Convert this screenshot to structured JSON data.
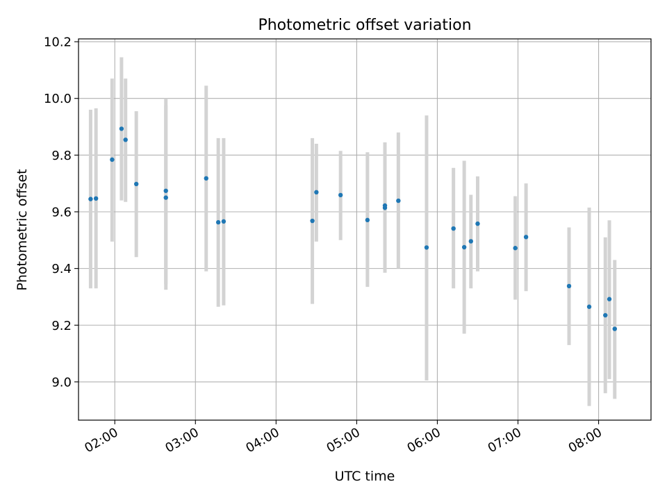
{
  "chart_data": {
    "type": "scatter",
    "title": "Photometric offset variation",
    "xlabel": "UTC time",
    "ylabel": "Photometric offset",
    "x_ticks": [
      "02:00",
      "03:00",
      "04:00",
      "05:00",
      "06:00",
      "07:00",
      "08:00"
    ],
    "y_ticks": [
      "9.0",
      "9.2",
      "9.4",
      "9.6",
      "9.8",
      "10.0",
      "10.2"
    ],
    "xlim": [
      "01:33",
      "08:39"
    ],
    "ylim": [
      8.865,
      10.21
    ],
    "grid": true,
    "legend": "none",
    "point_color": "#1f77b4",
    "errorbar_color": "#d3d3d3",
    "series": [
      {
        "points": [
          {
            "time": "01:42",
            "value": 9.645,
            "low": 9.33,
            "high": 9.96
          },
          {
            "time": "01:46",
            "value": 9.647,
            "low": 9.33,
            "high": 9.965
          },
          {
            "time": "01:58",
            "value": 9.784,
            "low": 9.495,
            "high": 10.07
          },
          {
            "time": "02:05",
            "value": 9.893,
            "low": 9.64,
            "high": 10.145
          },
          {
            "time": "02:08",
            "value": 9.854,
            "low": 9.635,
            "high": 10.07
          },
          {
            "time": "02:16",
            "value": 9.698,
            "low": 9.44,
            "high": 9.955
          },
          {
            "time": "02:38",
            "value": 9.674,
            "low": 9.345,
            "high": 10.0
          },
          {
            "time": "02:38",
            "value": 9.65,
            "low": 9.325,
            "high": 9.975
          },
          {
            "time": "03:08",
            "value": 9.718,
            "low": 9.39,
            "high": 10.045
          },
          {
            "time": "03:17",
            "value": 9.563,
            "low": 9.265,
            "high": 9.86
          },
          {
            "time": "03:21",
            "value": 9.566,
            "low": 9.27,
            "high": 9.86
          },
          {
            "time": "04:27",
            "value": 9.568,
            "low": 9.275,
            "high": 9.86
          },
          {
            "time": "04:30",
            "value": 9.669,
            "low": 9.495,
            "high": 9.84
          },
          {
            "time": "04:48",
            "value": 9.659,
            "low": 9.5,
            "high": 9.815
          },
          {
            "time": "05:08",
            "value": 9.571,
            "low": 9.335,
            "high": 9.81
          },
          {
            "time": "05:21",
            "value": 9.614,
            "low": 9.385,
            "high": 9.845
          },
          {
            "time": "05:21",
            "value": 9.622,
            "low": 9.4,
            "high": 9.845
          },
          {
            "time": "05:31",
            "value": 9.639,
            "low": 9.4,
            "high": 9.88
          },
          {
            "time": "05:52",
            "value": 9.474,
            "low": 9.005,
            "high": 9.94
          },
          {
            "time": "06:12",
            "value": 9.541,
            "low": 9.33,
            "high": 9.755
          },
          {
            "time": "06:20",
            "value": 9.475,
            "low": 9.17,
            "high": 9.78
          },
          {
            "time": "06:25",
            "value": 9.496,
            "low": 9.33,
            "high": 9.66
          },
          {
            "time": "06:30",
            "value": 9.558,
            "low": 9.39,
            "high": 9.725
          },
          {
            "time": "06:58",
            "value": 9.472,
            "low": 9.29,
            "high": 9.655
          },
          {
            "time": "07:06",
            "value": 9.511,
            "low": 9.32,
            "high": 9.7
          },
          {
            "time": "07:38",
            "value": 9.338,
            "low": 9.13,
            "high": 9.545
          },
          {
            "time": "07:53",
            "value": 9.265,
            "low": 8.915,
            "high": 9.615
          },
          {
            "time": "08:05",
            "value": 9.235,
            "low": 8.96,
            "high": 9.51
          },
          {
            "time": "08:08",
            "value": 9.292,
            "low": 9.01,
            "high": 9.57
          },
          {
            "time": "08:12",
            "value": 9.187,
            "low": 8.94,
            "high": 9.43
          }
        ]
      }
    ]
  }
}
